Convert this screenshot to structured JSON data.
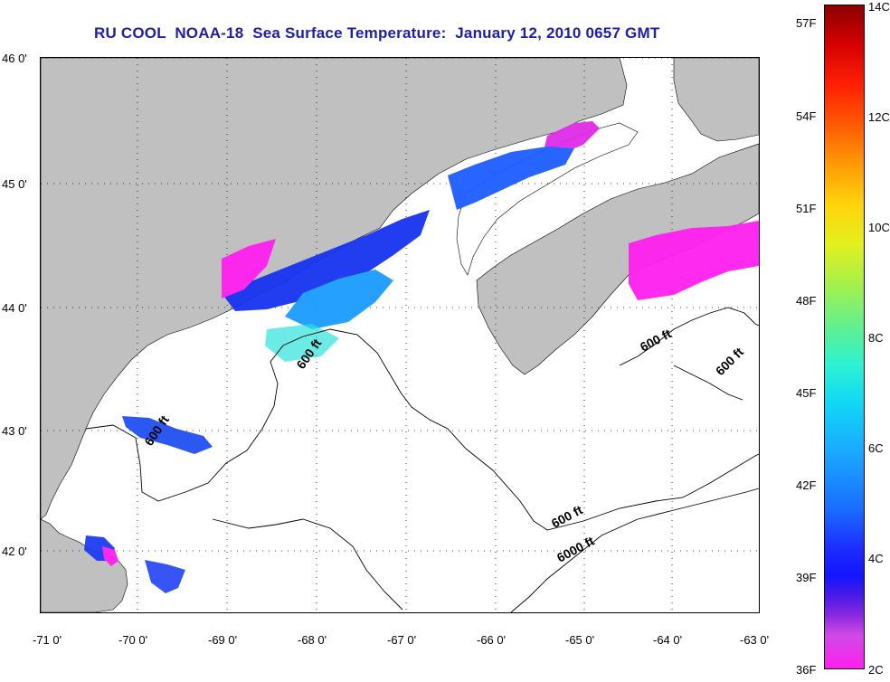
{
  "title": "RU COOL  NOAA-18  Sea Surface Temperature:  January 12, 2010 0657 GMT",
  "map": {
    "latitude_labels": [
      "46 0'",
      "45 0'",
      "44 0'",
      "43 0'",
      "42 0'"
    ],
    "longitude_labels": [
      "-71 0'",
      "-70 0'",
      "-69 0'",
      "-68 0'",
      "-67 0'",
      "-66 0'",
      "-65 0'",
      "-64 0'",
      "-63 0'"
    ],
    "contour_labels": [
      "600 ft",
      "600 ft",
      "600 ft",
      "600 ft",
      "600 ft",
      "6000 ft"
    ],
    "land_color": "#c0c0c0",
    "water_color": "#ffffff",
    "gridlines": "dotted"
  },
  "colorbar": {
    "fahrenheit_labels": [
      "57F",
      "54F",
      "51F",
      "48F",
      "45F",
      "42F",
      "39F",
      "36F"
    ],
    "celsius_labels": [
      "14C",
      "12C",
      "10C",
      "8C",
      "6C",
      "4C",
      "2C"
    ],
    "range_celsius": [
      2,
      14
    ],
    "range_fahrenheit": [
      36,
      57
    ],
    "colors": [
      "#ff1ff0",
      "#8a28e0",
      "#1414ff",
      "#1ba4ff",
      "#2ef2d0",
      "#a6f04a",
      "#e2f01e",
      "#ff9a06",
      "#ff2005",
      "#8c0000"
    ]
  }
}
